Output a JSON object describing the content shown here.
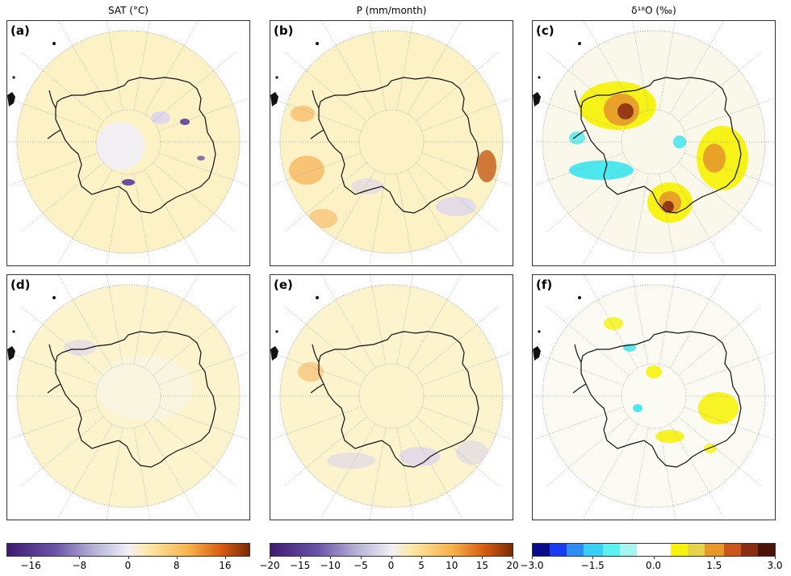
{
  "columns": [
    {
      "title": "SAT (°C)"
    },
    {
      "title": "P (mm/month)"
    },
    {
      "title": "δ¹⁸O (‰)"
    }
  ],
  "panels": [
    {
      "label": "(a)",
      "variable": "SAT",
      "row": 1
    },
    {
      "label": "(b)",
      "variable": "P",
      "row": 1
    },
    {
      "label": "(c)",
      "variable": "d18O",
      "row": 1
    },
    {
      "label": "(d)",
      "variable": "SAT",
      "row": 2
    },
    {
      "label": "(e)",
      "variable": "P",
      "row": 2
    },
    {
      "label": "(f)",
      "variable": "d18O",
      "row": 2
    }
  ],
  "colorbars": [
    {
      "min": -20,
      "max": 20,
      "tick_values": [
        -16,
        -8,
        0,
        8,
        16
      ],
      "ticks": [
        "−16",
        "−8",
        "0",
        "8",
        "16"
      ]
    },
    {
      "min": -20,
      "max": 20,
      "tick_values": [
        -20,
        -15,
        -10,
        -5,
        0,
        5,
        10,
        15,
        20
      ],
      "ticks": [
        "−20",
        "−15",
        "−10",
        "−5",
        "0",
        "5",
        "10",
        "15",
        "20"
      ]
    },
    {
      "min": -3,
      "max": 3,
      "tick_values": [
        -3,
        -1.5,
        0,
        1.5,
        3
      ],
      "ticks": [
        "−3.0",
        "−1.5",
        "0.0",
        "1.5",
        "3.0"
      ]
    }
  ],
  "colors": {
    "warm_light": "#fdf0c0",
    "warm_mid": "#f5b860",
    "warm_dark": "#c45a14",
    "cool_light": "#dcd6ec",
    "cool_dark": "#5a3d99",
    "d18o_yellow": "#f7f20e",
    "d18o_orange": "#e6992a",
    "d18o_brown": "#8b2d12",
    "d18o_cyan": "#38e5ee",
    "coast": "#111111"
  }
}
